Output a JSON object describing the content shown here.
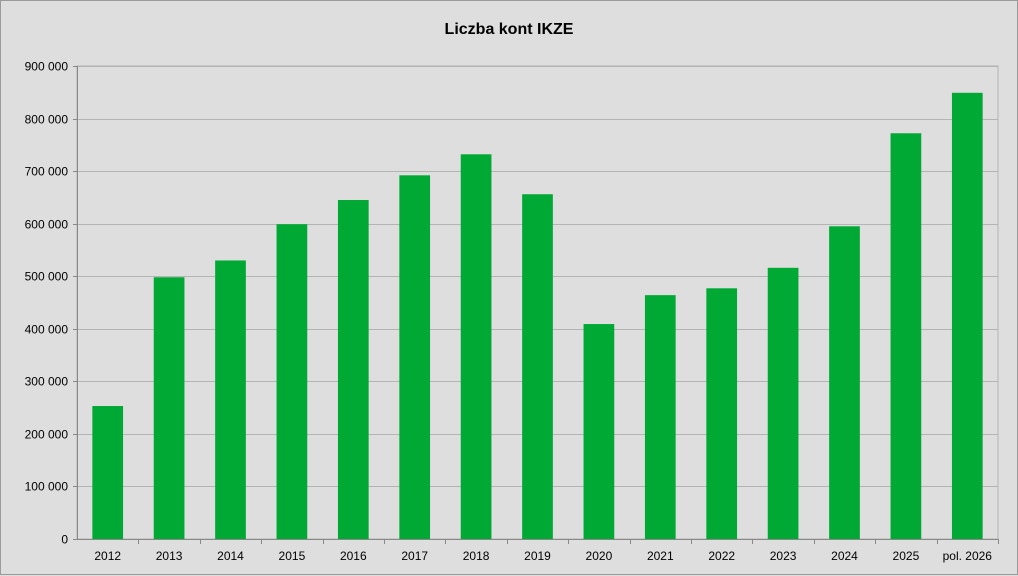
{
  "chart_data": {
    "type": "bar",
    "title": "Liczba kont IKZE",
    "xlabel": "",
    "ylabel": "",
    "categories": [
      "2012",
      "2013",
      "2014",
      "2015",
      "2016",
      "2017",
      "2018",
      "2019",
      "2020",
      "2021",
      "2022",
      "2023",
      "2024",
      "2025",
      "pol. 2026"
    ],
    "values": [
      253000,
      498000,
      530000,
      599000,
      645000,
      692000,
      732000,
      656000,
      409000,
      464000,
      477000,
      516000,
      595000,
      772000,
      849000
    ],
    "ylim": [
      0,
      900000
    ],
    "y_ticks": [
      0,
      100000,
      200000,
      300000,
      400000,
      500000,
      600000,
      700000,
      800000,
      900000
    ],
    "y_tick_labels": [
      "0",
      "100 000",
      "200 000",
      "300 000",
      "400 000",
      "500 000",
      "600 000",
      "700 000",
      "800 000",
      "900 000"
    ],
    "grid": true,
    "legend": "none",
    "colors": {
      "bar": "#00a834",
      "background": "#dedede",
      "grid": "#b4b4b4",
      "axis": "#888888"
    }
  }
}
